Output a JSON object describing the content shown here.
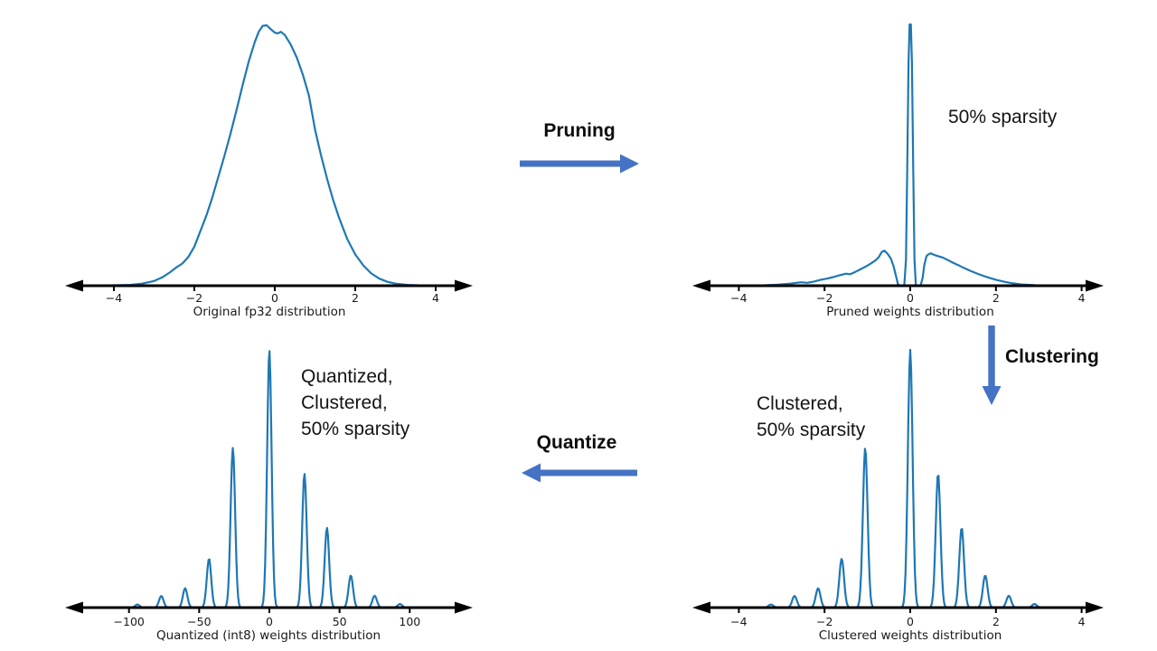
{
  "colors": {
    "curve": "#1f77b4",
    "axis": "#000000",
    "flow_arrow": "#4472c4",
    "plot_text": "#1a1a1a",
    "note_text": "#141414"
  },
  "flow": {
    "pruning_label": "Pruning",
    "clustering_label": "Clustering",
    "quantize_label": "Quantize"
  },
  "annotations": {
    "pruned_note": "50% sparsity",
    "clustered_note_lines": [
      "Clustered,",
      "50% sparsity"
    ],
    "quantized_note_lines": [
      "Quantized,",
      "Clustered,",
      "50% sparsity"
    ]
  },
  "chart_data": [
    {
      "id": "original_fp32",
      "type": "line",
      "title": "Original fp32 distribution",
      "xticks": [
        -4,
        -2,
        0,
        2,
        4
      ],
      "xtick_labels": [
        "−4",
        "−2",
        "0",
        "2",
        "4"
      ],
      "xlim": [
        -4.6,
        4.6
      ],
      "ylim": [
        0,
        1
      ],
      "description": "Bell-shaped density of original float32 weights, peak slightly left of 0",
      "curve_x": [
        -4.6,
        -3.6,
        -3.3,
        -3.0,
        -2.8,
        -2.6,
        -2.45,
        -2.3,
        -2.15,
        -2.0,
        -1.85,
        -1.7,
        -1.55,
        -1.4,
        -1.25,
        -1.1,
        -0.95,
        -0.8,
        -0.65,
        -0.5,
        -0.4,
        -0.3,
        -0.2,
        -0.1,
        0.0,
        0.07,
        0.15,
        0.25,
        0.4,
        0.55,
        0.7,
        0.85,
        1.0,
        1.15,
        1.3,
        1.45,
        1.6,
        1.8,
        2.0,
        2.2,
        2.4,
        2.6,
        2.8,
        3.0,
        3.3,
        3.7,
        4.6
      ],
      "curve_y": [
        0,
        0.003,
        0.008,
        0.018,
        0.032,
        0.052,
        0.07,
        0.085,
        0.11,
        0.15,
        0.21,
        0.27,
        0.34,
        0.42,
        0.5,
        0.585,
        0.675,
        0.77,
        0.86,
        0.935,
        0.975,
        0.998,
        1.0,
        0.985,
        0.972,
        0.969,
        0.975,
        0.963,
        0.925,
        0.875,
        0.81,
        0.73,
        0.6,
        0.5,
        0.41,
        0.33,
        0.26,
        0.18,
        0.12,
        0.078,
        0.047,
        0.027,
        0.015,
        0.008,
        0.003,
        0.001,
        0
      ]
    },
    {
      "id": "pruned_weights",
      "type": "line",
      "title": "Pruned weights distribution",
      "note": "50% sparsity",
      "xticks": [
        -4,
        -2,
        0,
        2,
        4
      ],
      "xtick_labels": [
        "−4",
        "−2",
        "0",
        "2",
        "4"
      ],
      "xlim": [
        -4.4,
        4.4
      ],
      "ylim": [
        0,
        1
      ],
      "description": "Tall narrow spike at 0 (pruned zeros), gap around ±0.2, side lobes peaking near ±0.6 then decaying to ±3",
      "curve_x": [
        -4.4,
        -3.5,
        -3.1,
        -2.8,
        -2.55,
        -2.4,
        -2.25,
        -2.1,
        -1.95,
        -1.8,
        -1.65,
        -1.5,
        -1.4,
        -1.28,
        -1.15,
        -1.02,
        -0.92,
        -0.82,
        -0.74,
        -0.66,
        -0.6,
        -0.52,
        -0.45,
        -0.39,
        -0.33,
        -0.29,
        -0.25,
        -0.19,
        -0.14,
        -0.1,
        -0.07,
        -0.04,
        -0.015,
        0.015,
        0.04,
        0.07,
        0.1,
        0.13,
        0.17,
        0.24,
        0.29,
        0.33,
        0.38,
        0.43,
        0.48,
        0.56,
        0.65,
        0.76,
        0.88,
        1.0,
        1.12,
        1.25,
        1.4,
        1.55,
        1.7,
        1.85,
        2.0,
        2.2,
        2.4,
        2.6,
        2.9,
        3.3,
        4.4
      ],
      "curve_y": [
        0,
        0.001,
        0.004,
        0.008,
        0.013,
        0.011,
        0.016,
        0.022,
        0.027,
        0.033,
        0.04,
        0.046,
        0.044,
        0.053,
        0.064,
        0.075,
        0.085,
        0.096,
        0.108,
        0.13,
        0.134,
        0.12,
        0.103,
        0.075,
        0.035,
        0.008,
        0.0,
        0.0,
        0.0,
        0.1,
        0.45,
        0.85,
        1.0,
        1.0,
        0.85,
        0.45,
        0.1,
        0.003,
        0.0,
        0.0,
        0.03,
        0.08,
        0.113,
        0.121,
        0.124,
        0.118,
        0.113,
        0.108,
        0.098,
        0.088,
        0.079,
        0.068,
        0.057,
        0.047,
        0.038,
        0.03,
        0.023,
        0.015,
        0.009,
        0.005,
        0.002,
        0.001,
        0
      ]
    },
    {
      "id": "clustered_weights",
      "type": "line",
      "title": "Clustered weights distribution",
      "note": "Clustered, 50% sparsity",
      "xticks": [
        -4,
        -2,
        0,
        2,
        4
      ],
      "xtick_labels": [
        "−4",
        "−2",
        "0",
        "2",
        "4"
      ],
      "xlim": [
        -4.4,
        4.4
      ],
      "ylim": [
        0,
        1
      ],
      "description": "Narrow spikes at cluster centroids, tallest at 0",
      "spike_sigma": 0.055,
      "spike_centers": [
        -3.25,
        -2.7,
        -2.15,
        -1.6,
        -1.05,
        0,
        0.65,
        1.2,
        1.75,
        2.3,
        2.9
      ],
      "spike_heights": [
        0.012,
        0.045,
        0.075,
        0.19,
        0.62,
        1.0,
        0.52,
        0.31,
        0.125,
        0.046,
        0.014
      ]
    },
    {
      "id": "quantized_int8_weights",
      "type": "line",
      "title": "Quantized (int8) weights distribution",
      "note": "Quantized, Clustered, 50% sparsity",
      "xticks": [
        -100,
        -50,
        0,
        50,
        100
      ],
      "xtick_labels": [
        "−100",
        "−50",
        "0",
        "50",
        "100"
      ],
      "xlim": [
        -140,
        140
      ],
      "ylim": [
        0,
        1
      ],
      "description": "Same clustered spikes mapped to int8 integer levels, tallest at 0",
      "spike_sigma": 1.6,
      "spike_centers": [
        -94,
        -77,
        -60,
        -43,
        -26,
        0,
        25,
        41,
        58,
        75,
        93
      ],
      "spike_heights": [
        0.012,
        0.045,
        0.075,
        0.19,
        0.62,
        1.0,
        0.52,
        0.31,
        0.125,
        0.046,
        0.014
      ]
    }
  ]
}
